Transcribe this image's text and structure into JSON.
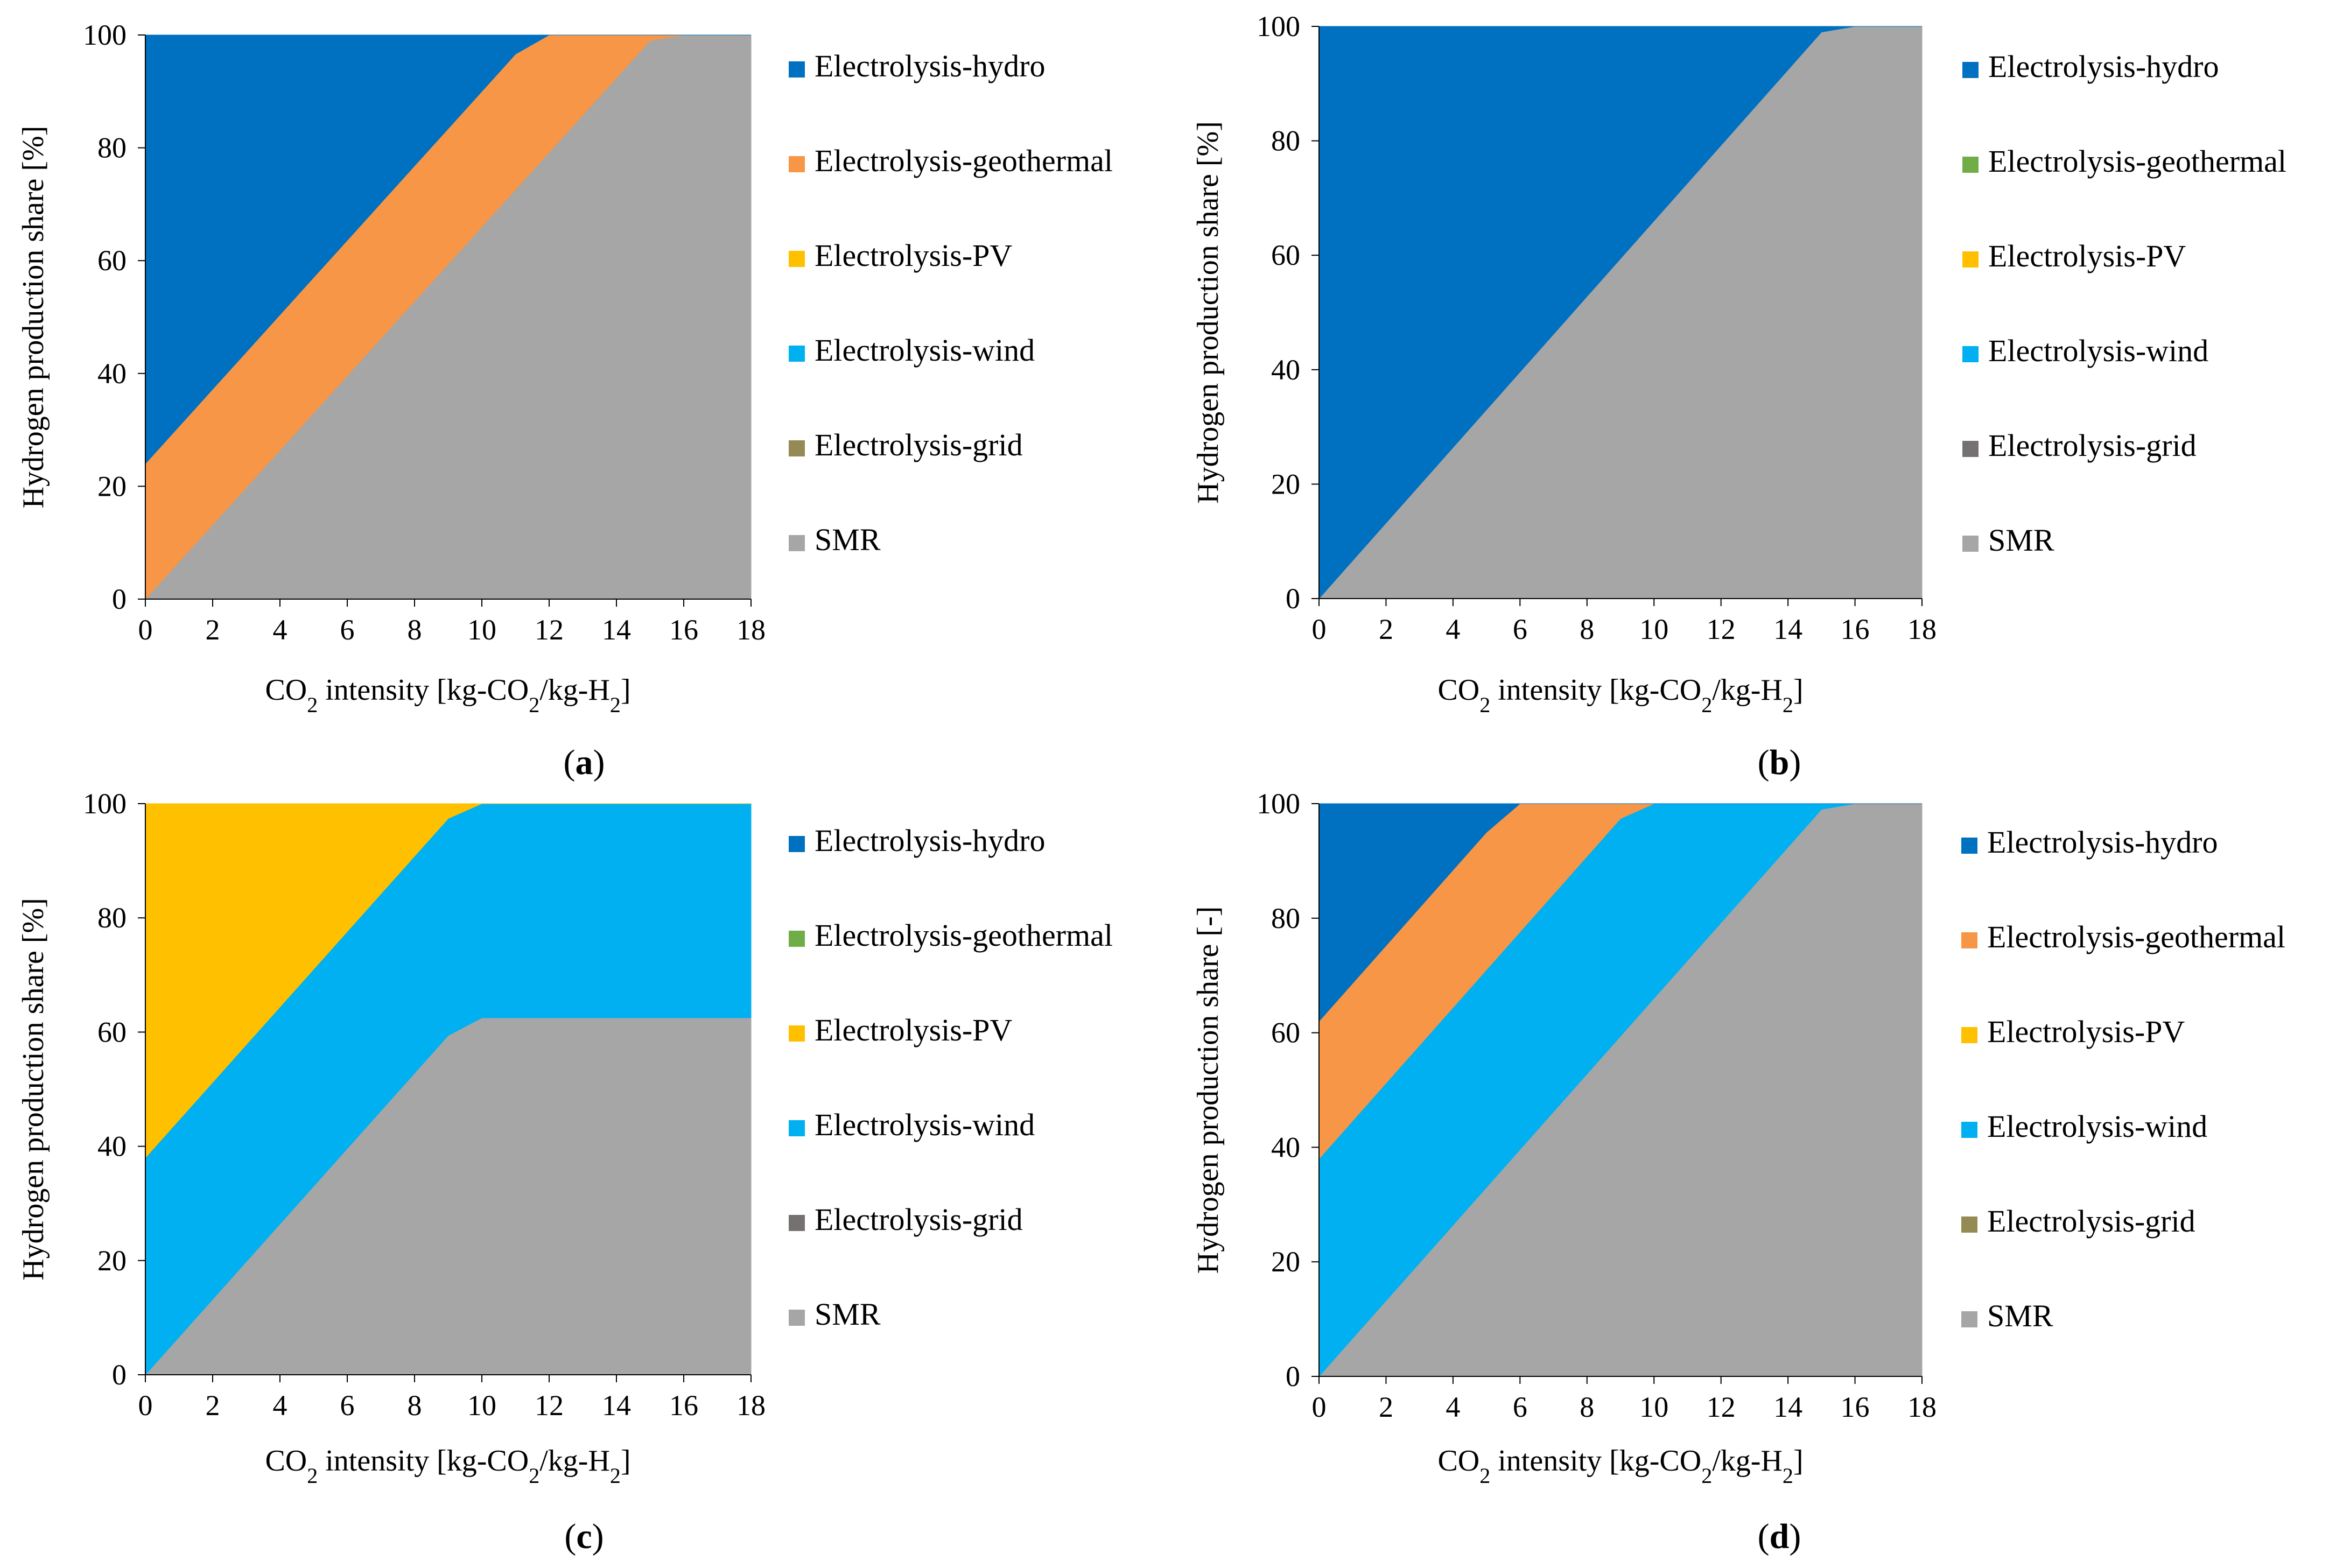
{
  "colors": {
    "Electrolysis-hydro": "#0070C0",
    "Electrolysis-geothermal-orange": "#F79646",
    "Electrolysis-geothermal-green": "#70AD47",
    "Electrolysis-PV": "#FFC000",
    "Electrolysis-wind": "#00B0F0",
    "Electrolysis-grid-olive": "#948A54",
    "Electrolysis-grid-dark": "#767171",
    "SMR": "#A6A6A6"
  },
  "chart_data": [
    {
      "id": "a",
      "type": "area",
      "panel_label": "a",
      "xlabel": {
        "prefix": "CO",
        "sub": "2",
        "mid": " intensity [kg-CO",
        "sub2": "2",
        "mid2": "/kg-H",
        "sub3": "2",
        "suffix": "]"
      },
      "ylabel": "Hydrogen production share [%]",
      "xlim": [
        0,
        18
      ],
      "ylim": [
        0,
        100
      ],
      "xticks": [
        0,
        2,
        4,
        6,
        8,
        10,
        12,
        14,
        16,
        18
      ],
      "yticks": [
        0,
        20,
        40,
        60,
        80,
        100
      ],
      "legend": [
        {
          "name": "Electrolysis-hydro",
          "color": "#0070C0"
        },
        {
          "name": "Electrolysis-geothermal",
          "color": "#F79646"
        },
        {
          "name": "Electrolysis-PV",
          "color": "#FFC000"
        },
        {
          "name": "Electrolysis-wind",
          "color": "#00B0F0"
        },
        {
          "name": "Electrolysis-grid",
          "color": "#948A54"
        },
        {
          "name": "SMR",
          "color": "#A6A6A6"
        }
      ],
      "x": [
        0,
        1,
        2,
        3,
        4,
        5,
        6,
        7,
        8,
        9,
        10,
        11,
        12,
        13,
        14,
        15,
        16,
        17,
        18
      ],
      "series": [
        {
          "name": "SMR",
          "values": [
            0,
            6.6,
            13.2,
            19.8,
            26.4,
            33,
            39.6,
            46.2,
            52.8,
            59.4,
            66,
            72.6,
            79.2,
            85.8,
            92.4,
            99,
            100,
            100,
            100
          ]
        },
        {
          "name": "Electrolysis-geothermal",
          "values": [
            24,
            24,
            24,
            24,
            24,
            24,
            24,
            24,
            24,
            24,
            24,
            24,
            20.8,
            14.2,
            7.6,
            1,
            0,
            0,
            0
          ]
        },
        {
          "name": "Electrolysis-hydro",
          "values": [
            76,
            69.4,
            62.8,
            56.2,
            49.6,
            43,
            36.4,
            29.8,
            23.2,
            16.6,
            10,
            3.4,
            0,
            0,
            0,
            0,
            0,
            0,
            0
          ]
        }
      ]
    },
    {
      "id": "b",
      "type": "area",
      "panel_label": "b",
      "xlabel": {
        "prefix": "CO",
        "sub": "2",
        "mid": " intensity [kg-CO",
        "sub2": "2",
        "mid2": "/kg-H",
        "sub3": "2",
        "suffix": "]"
      },
      "ylabel": "Hydrogen production share [%]",
      "xlim": [
        0,
        18
      ],
      "ylim": [
        0,
        100
      ],
      "xticks": [
        0,
        2,
        4,
        6,
        8,
        10,
        12,
        14,
        16,
        18
      ],
      "yticks": [
        0,
        20,
        40,
        60,
        80,
        100
      ],
      "legend": [
        {
          "name": "Electrolysis-hydro",
          "color": "#0070C0"
        },
        {
          "name": "Electrolysis-geothermal",
          "color": "#70AD47"
        },
        {
          "name": "Electrolysis-PV",
          "color": "#FFC000"
        },
        {
          "name": "Electrolysis-wind",
          "color": "#00B0F0"
        },
        {
          "name": "Electrolysis-grid",
          "color": "#767171"
        },
        {
          "name": "SMR",
          "color": "#A6A6A6"
        }
      ],
      "x": [
        0,
        1,
        2,
        3,
        4,
        5,
        6,
        7,
        8,
        9,
        10,
        11,
        12,
        13,
        14,
        15,
        16,
        17,
        18
      ],
      "series": [
        {
          "name": "SMR",
          "values": [
            0,
            6.6,
            13.2,
            19.8,
            26.4,
            33,
            39.6,
            46.2,
            52.8,
            59.4,
            66,
            72.6,
            79.2,
            85.8,
            92.4,
            99,
            100,
            100,
            100
          ]
        },
        {
          "name": "Electrolysis-hydro",
          "values": [
            100,
            93.4,
            86.8,
            80.2,
            73.6,
            67,
            60.4,
            53.8,
            47.2,
            40.6,
            34,
            27.4,
            20.8,
            14.2,
            7.6,
            1,
            0,
            0,
            0
          ]
        }
      ]
    },
    {
      "id": "c",
      "type": "area",
      "panel_label": "c",
      "xlabel": {
        "prefix": "CO",
        "sub": "2",
        "mid": " intensity [kg-CO",
        "sub2": "2",
        "mid2": "/kg-H",
        "sub3": "2",
        "suffix": "]"
      },
      "ylabel": "Hydrogen production share [%]",
      "xlim": [
        0,
        18
      ],
      "ylim": [
        0,
        100
      ],
      "xticks": [
        0,
        2,
        4,
        6,
        8,
        10,
        12,
        14,
        16,
        18
      ],
      "yticks": [
        0,
        20,
        40,
        60,
        80,
        100
      ],
      "legend": [
        {
          "name": "Electrolysis-hydro",
          "color": "#0070C0"
        },
        {
          "name": "Electrolysis-geothermal",
          "color": "#70AD47"
        },
        {
          "name": "Electrolysis-PV",
          "color": "#FFC000"
        },
        {
          "name": "Electrolysis-wind",
          "color": "#00B0F0"
        },
        {
          "name": "Electrolysis-grid",
          "color": "#767171"
        },
        {
          "name": "SMR",
          "color": "#A6A6A6"
        }
      ],
      "x": [
        0,
        1,
        2,
        3,
        4,
        5,
        6,
        7,
        8,
        9,
        10,
        11,
        12,
        13,
        14,
        15,
        16,
        17,
        18
      ],
      "series": [
        {
          "name": "SMR",
          "values": [
            0,
            6.6,
            13.2,
            19.8,
            26.4,
            33,
            39.6,
            46.2,
            52.8,
            59.4,
            62.5,
            62.5,
            62.5,
            62.5,
            62.5,
            62.5,
            62.5,
            62.5,
            62.5
          ]
        },
        {
          "name": "Electrolysis-wind",
          "values": [
            38,
            38,
            38,
            38,
            38,
            38,
            38,
            38,
            38,
            38,
            37.5,
            37.5,
            37.5,
            37.5,
            37.5,
            37.5,
            37.5,
            37.5,
            37.5
          ]
        },
        {
          "name": "Electrolysis-PV",
          "values": [
            62,
            55.4,
            48.8,
            42.2,
            35.6,
            29,
            22.4,
            15.8,
            9.2,
            2.6,
            0,
            0,
            0,
            0,
            0,
            0,
            0,
            0,
            0
          ]
        }
      ]
    },
    {
      "id": "d",
      "type": "area",
      "panel_label": "d",
      "xlabel": {
        "prefix": "CO",
        "sub": "2",
        "mid": " intensity [kg-CO",
        "sub2": "2",
        "mid2": "/kg-H",
        "sub3": "2",
        "suffix": "]"
      },
      "ylabel": "Hydrogen production share [-]",
      "xlim": [
        0,
        18
      ],
      "ylim": [
        0,
        100
      ],
      "xticks": [
        0,
        2,
        4,
        6,
        8,
        10,
        12,
        14,
        16,
        18
      ],
      "yticks": [
        0,
        20,
        40,
        60,
        80,
        100
      ],
      "legend": [
        {
          "name": "Electrolysis-hydro",
          "color": "#0070C0"
        },
        {
          "name": "Electrolysis-geothermal",
          "color": "#F79646"
        },
        {
          "name": "Electrolysis-PV",
          "color": "#FFC000"
        },
        {
          "name": "Electrolysis-wind",
          "color": "#00B0F0"
        },
        {
          "name": "Electrolysis-grid",
          "color": "#948A54"
        },
        {
          "name": "SMR",
          "color": "#A6A6A6"
        }
      ],
      "x": [
        0,
        1,
        2,
        3,
        4,
        5,
        6,
        7,
        8,
        9,
        10,
        11,
        12,
        13,
        14,
        15,
        16,
        17,
        18
      ],
      "series": [
        {
          "name": "SMR",
          "values": [
            0,
            6.6,
            13.2,
            19.8,
            26.4,
            33,
            39.6,
            46.2,
            52.8,
            59.4,
            66,
            72.6,
            79.2,
            85.8,
            92.4,
            99,
            100,
            100,
            100
          ]
        },
        {
          "name": "Electrolysis-wind",
          "values": [
            38,
            38,
            38,
            38,
            38,
            38,
            38,
            38,
            38,
            38,
            34,
            27.4,
            20.8,
            14.2,
            7.6,
            1,
            0,
            0,
            0
          ]
        },
        {
          "name": "Electrolysis-geothermal",
          "values": [
            24,
            24,
            24,
            24,
            24,
            24,
            22.4,
            15.8,
            9.2,
            2.6,
            0,
            0,
            0,
            0,
            0,
            0,
            0,
            0,
            0
          ]
        },
        {
          "name": "Electrolysis-hydro",
          "values": [
            38,
            31.4,
            24.8,
            18.2,
            11.6,
            5,
            0,
            0,
            0,
            0,
            0,
            0,
            0,
            0,
            0,
            0,
            0,
            0,
            0
          ]
        }
      ]
    }
  ]
}
